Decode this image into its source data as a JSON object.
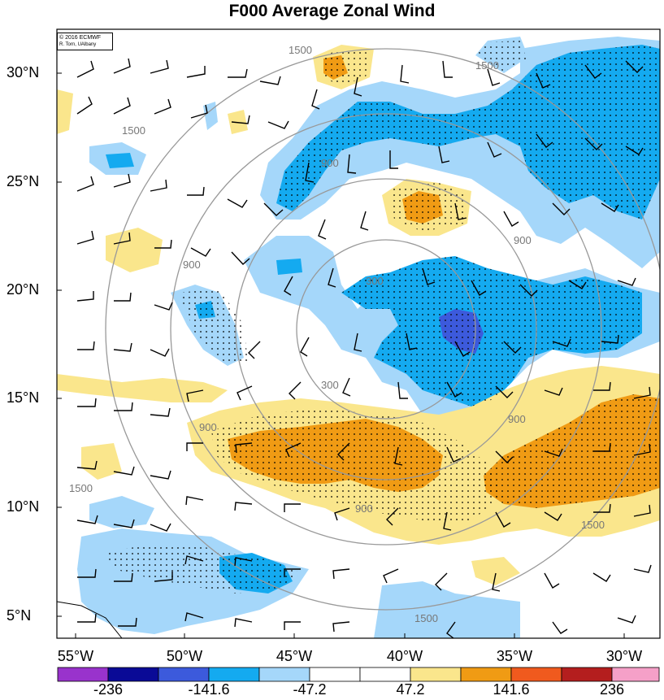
{
  "title": "F000 Average Zonal Wind",
  "credit": {
    "line1": "© 2016 ECMWF",
    "line2": "R. Torn, UAlbany"
  },
  "latitude_labels": [
    "30°N",
    "25°N",
    "20°N",
    "15°N",
    "10°N",
    "5°N"
  ],
  "longitude_labels": [
    "55°W",
    "50°W",
    "45°W",
    "40°W",
    "35°W",
    "30°W"
  ],
  "contour_labels": [
    "1500",
    "1500",
    "1500",
    "900",
    "900",
    "300",
    "300",
    "900",
    "900",
    "900",
    "900",
    "1500",
    "1500",
    "1500"
  ],
  "colorbar": {
    "labels": [
      "-236",
      "-141.6",
      "-47.2",
      "47.2",
      "141.6",
      "236"
    ],
    "colors": [
      "#9933cc",
      "#0a0a96",
      "#3c5adc",
      "#14aaf0",
      "#a5d7fa",
      "#ffffff",
      "#ffffff",
      "#fae68c",
      "#f09b14",
      "#f05a1e",
      "#b41e1e",
      "#f5a0c8"
    ]
  },
  "colors": {
    "light_blue": "#a5d7fa",
    "mid_blue": "#14aaf0",
    "dark_blue": "#3c5adc",
    "light_yellow": "#fae68c",
    "orange": "#f09b14",
    "range_ring": "#999999"
  }
}
